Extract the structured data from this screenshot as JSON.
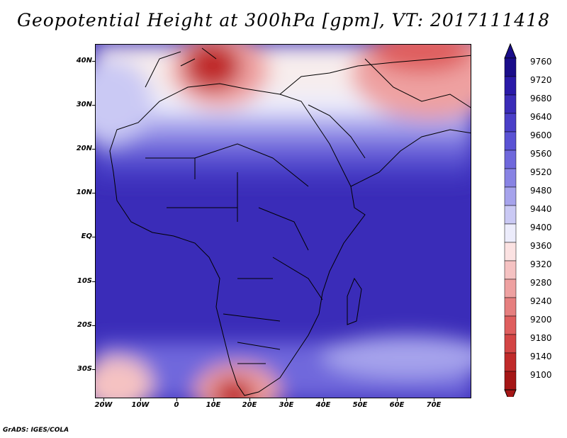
{
  "title": "Geopotential Height at 300hPa [gpm], VT: 2017111418",
  "footer": "GrADS: IGES/COLA",
  "map": {
    "region": "Africa",
    "lat_labels": [
      "40N",
      "30N",
      "20N",
      "10N",
      "EQ",
      "10S",
      "20S",
      "30S"
    ],
    "lon_labels": [
      "20W",
      "10W",
      "0",
      "10E",
      "20E",
      "30E",
      "40E",
      "50E",
      "60E",
      "70E"
    ]
  },
  "colorbar": {
    "labels": [
      "9760",
      "9720",
      "9680",
      "9640",
      "9600",
      "9560",
      "9520",
      "9480",
      "9440",
      "9400",
      "9360",
      "9320",
      "9280",
      "9240",
      "9200",
      "9180",
      "9140",
      "9100"
    ],
    "colors": [
      "#1a0d8a",
      "#2a1aa8",
      "#3a2cb8",
      "#4a3fc8",
      "#5a52d4",
      "#6f68dc",
      "#8883e4",
      "#a6a3ec",
      "#cac9f4",
      "#ececfb",
      "#fbe2e2",
      "#f5c2c2",
      "#eea1a1",
      "#e67f7f",
      "#df5e5e",
      "#d34545",
      "#c02a2a",
      "#a51616"
    ]
  }
}
